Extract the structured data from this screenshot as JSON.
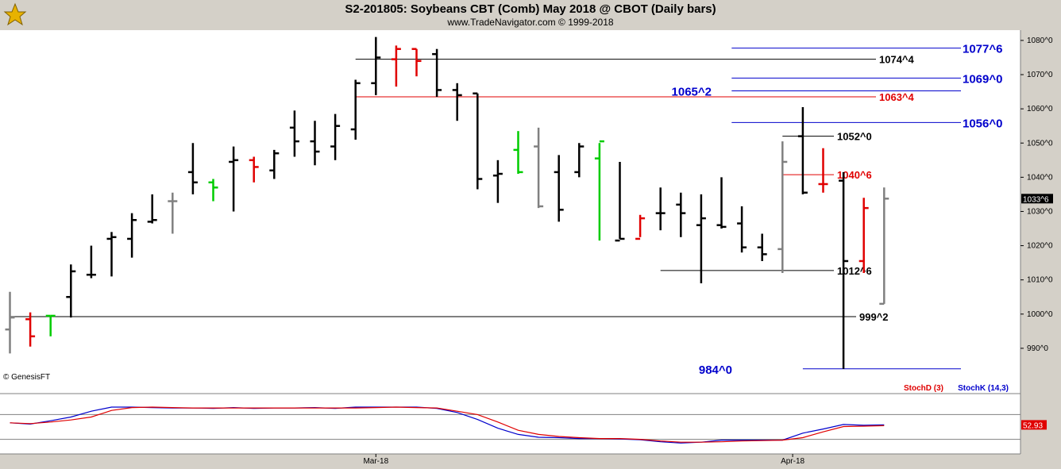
{
  "header": {
    "title": "S2-201805:  Soybeans CBT (Comb) May 2018 @ CBOT  (Daily bars)",
    "subtitle": "www.TradeNavigator.com © 1999-2018"
  },
  "copyright": "© GenesisFT",
  "colors": {
    "up": "#000000",
    "down": "#e00000",
    "neutral": "#808080",
    "inside": "#00cc00",
    "blue_level": "#0000cc",
    "red_level": "#e00000",
    "stochK": "#0000cc",
    "stochD": "#e00000"
  },
  "chart_data": [
    {
      "type": "ohlc",
      "title": "S2-201805:  Soybeans CBT (Comb) May 2018 @ CBOT  (Daily bars)",
      "price_unit_note": "prices in cents and quarter-cents (1074^4 = 1074 4/8)",
      "ylim": [
        980,
        1083
      ],
      "y_ticks": [
        "990^0",
        "1000^0",
        "1010^0",
        "1020^0",
        "1030^0",
        "1040^0",
        "1050^0",
        "1060^0",
        "1070^0",
        "1080^0"
      ],
      "x_ticks": [
        "Mar-18",
        "Apr-18"
      ],
      "last_price_label": "1033^6",
      "bars": [
        {
          "o": 995.5,
          "h": 1006.5,
          "l": 988.5,
          "c": 999,
          "color": "neutral"
        },
        {
          "o": 998.5,
          "h": 1000.5,
          "l": 990.5,
          "c": 993.5,
          "color": "down"
        },
        {
          "o": 999.5,
          "h": 999.5,
          "l": 993.5,
          "c": 999.5,
          "color": "inside"
        },
        {
          "o": 1005,
          "h": 1014.5,
          "l": 999,
          "c": 1012.5,
          "color": "up"
        },
        {
          "o": 1011.5,
          "h": 1020,
          "l": 1010.5,
          "c": 1011.5,
          "color": "up"
        },
        {
          "o": 1022,
          "h": 1024,
          "l": 1011,
          "c": 1022.5,
          "color": "up"
        },
        {
          "o": 1022,
          "h": 1029.5,
          "l": 1016.5,
          "c": 1027.5,
          "color": "up"
        },
        {
          "o": 1027,
          "h": 1035,
          "l": 1026.5,
          "c": 1027.5,
          "color": "up"
        },
        {
          "o": 1033,
          "h": 1035.5,
          "l": 1023.5,
          "c": 1033,
          "color": "neutral"
        },
        {
          "o": 1041.5,
          "h": 1050,
          "l": 1035,
          "c": 1038.5,
          "color": "up"
        },
        {
          "o": 1038.5,
          "h": 1039.5,
          "l": 1033,
          "c": 1037,
          "color": "inside"
        },
        {
          "o": 1044.5,
          "h": 1049,
          "l": 1030,
          "c": 1045,
          "color": "up"
        },
        {
          "o": 1045,
          "h": 1046,
          "l": 1038.5,
          "c": 1043,
          "color": "down"
        },
        {
          "o": 1042,
          "h": 1048,
          "l": 1039.5,
          "c": 1047,
          "color": "up"
        },
        {
          "o": 1054.5,
          "h": 1059.5,
          "l": 1046,
          "c": 1050.5,
          "color": "up"
        },
        {
          "o": 1050.5,
          "h": 1056.5,
          "l": 1043.5,
          "c": 1047.5,
          "color": "up"
        },
        {
          "o": 1049,
          "h": 1058.5,
          "l": 1045,
          "c": 1055,
          "color": "up"
        },
        {
          "o": 1054,
          "h": 1068.5,
          "l": 1051,
          "c": 1067.5,
          "color": "up"
        },
        {
          "o": 1067.5,
          "h": 1081,
          "l": 1064,
          "c": 1075,
          "color": "up"
        },
        {
          "o": 1074.5,
          "h": 1078.5,
          "l": 1066.5,
          "c": 1077.5,
          "color": "down"
        },
        {
          "o": 1077.5,
          "h": 1077.5,
          "l": 1069.5,
          "c": 1074,
          "color": "down"
        },
        {
          "o": 1076,
          "h": 1077.5,
          "l": 1063.5,
          "c": 1065.5,
          "color": "up"
        },
        {
          "o": 1065.5,
          "h": 1067.5,
          "l": 1056.5,
          "c": 1064,
          "color": "up"
        },
        {
          "o": 1064.5,
          "h": 1064.5,
          "l": 1036.5,
          "c": 1039.5,
          "color": "up"
        },
        {
          "o": 1040.5,
          "h": 1045,
          "l": 1032.5,
          "c": 1041,
          "color": "up"
        },
        {
          "o": 1048,
          "h": 1053.5,
          "l": 1041,
          "c": 1041.5,
          "color": "inside"
        },
        {
          "o": 1049,
          "h": 1054.5,
          "l": 1031,
          "c": 1031.5,
          "color": "neutral"
        },
        {
          "o": 1041.5,
          "h": 1046.5,
          "l": 1027,
          "c": 1030.5,
          "color": "up"
        },
        {
          "o": 1041.5,
          "h": 1050,
          "l": 1040,
          "c": 1049,
          "color": "up"
        },
        {
          "o": 1045.5,
          "h": 1050,
          "l": 1021.5,
          "c": 1050.5,
          "color": "inside"
        },
        {
          "o": 1021.5,
          "h": 1044.5,
          "l": 1022,
          "c": 1022,
          "color": "up"
        },
        {
          "o": 1022,
          "h": 1029,
          "l": 1022.5,
          "c": 1028,
          "color": "down"
        },
        {
          "o": 1029.5,
          "h": 1037,
          "l": 1024.5,
          "c": 1029.5,
          "color": "up"
        },
        {
          "o": 1032,
          "h": 1035.5,
          "l": 1022.5,
          "c": 1029.5,
          "color": "up"
        },
        {
          "o": 1026,
          "h": 1035,
          "l": 1009,
          "c": 1028,
          "color": "up"
        },
        {
          "o": 1026,
          "h": 1040,
          "l": 1025,
          "c": 1025.5,
          "color": "up"
        },
        {
          "o": 1026.5,
          "h": 1031.5,
          "l": 1018,
          "c": 1019.5,
          "color": "up"
        },
        {
          "o": 1019.5,
          "h": 1023.5,
          "l": 1015.5,
          "c": 1017.5,
          "color": "up"
        },
        {
          "o": 1019,
          "h": 1050.5,
          "l": 1012,
          "c": 1044.5,
          "color": "neutral"
        },
        {
          "o": 1052,
          "h": 1060.5,
          "l": 1035,
          "c": 1035.5,
          "color": "up"
        },
        {
          "o": 1038,
          "h": 1048.5,
          "l": 1035.5,
          "c": 1038,
          "color": "down"
        },
        {
          "o": 1039,
          "h": 1041.5,
          "l": 984,
          "c": 1015.5,
          "color": "up"
        },
        {
          "o": 1015.5,
          "h": 1034,
          "l": 1012,
          "c": 1031,
          "color": "down"
        },
        {
          "o": 1003,
          "h": 1037,
          "l": 1003,
          "c": 1033.75,
          "color": "neutral"
        }
      ],
      "levels": [
        {
          "label": "1077^6",
          "value": 1077.75,
          "color": "blue_level",
          "x_from_bar": 35.5
        },
        {
          "label": "1074^4",
          "value": 1074.5,
          "color": "up",
          "x_from_bar": 17
        },
        {
          "label": "1069^0",
          "value": 1069.0,
          "color": "blue_level",
          "x_from_bar": 35.5
        },
        {
          "label": "1065^2",
          "value": 1065.25,
          "color": "blue_level",
          "x_from_bar": 35.5
        },
        {
          "label": "1063^4",
          "value": 1063.5,
          "color": "red_level",
          "x_from_bar": 17
        },
        {
          "label": "1056^0",
          "value": 1056.0,
          "color": "blue_level",
          "x_from_bar": 35.5
        },
        {
          "label": "1052^0",
          "value": 1052.0,
          "color": "up",
          "x_from_bar": 38
        },
        {
          "label": "1040^6",
          "value": 1040.75,
          "color": "red_level",
          "x_from_bar": 38
        },
        {
          "label": "1012^6",
          "value": 1012.75,
          "color": "up",
          "x_from_bar": 32
        },
        {
          "label": "999^2",
          "value": 999.25,
          "color": "up",
          "x_from_bar": 0
        },
        {
          "label": "984^0",
          "value": 984.0,
          "color": "blue_level",
          "x_from_bar": 39
        }
      ]
    },
    {
      "type": "line",
      "title": "",
      "legend": [
        "StochD (3)",
        "StochK (14,3)"
      ],
      "last_value_label": "52.93",
      "ylim": [
        0,
        100
      ],
      "series": [
        {
          "name": "StochK (14,3)",
          "color": "stochK",
          "values": [
            60,
            57,
            65,
            74,
            88,
            98,
            98,
            97,
            96,
            96,
            95,
            97,
            95,
            96,
            96,
            97,
            95,
            98,
            98,
            98,
            98,
            95,
            85,
            68,
            47,
            32,
            25,
            24,
            22,
            22,
            21,
            19,
            14,
            11,
            13,
            18,
            18,
            18,
            18,
            35,
            45,
            56,
            54,
            55
          ]
        },
        {
          "name": "StochD (3)",
          "color": "stochD",
          "values": [
            60,
            58,
            62,
            67,
            74,
            90,
            97,
            98,
            97,
            96,
            96,
            96,
            96,
            96,
            96,
            96,
            96,
            96,
            97,
            98,
            97,
            96,
            88,
            80,
            62,
            42,
            32,
            27,
            24,
            22,
            22,
            20,
            16,
            13,
            13,
            14,
            16,
            17,
            18,
            24,
            38,
            51,
            52,
            53
          ]
        }
      ]
    }
  ]
}
